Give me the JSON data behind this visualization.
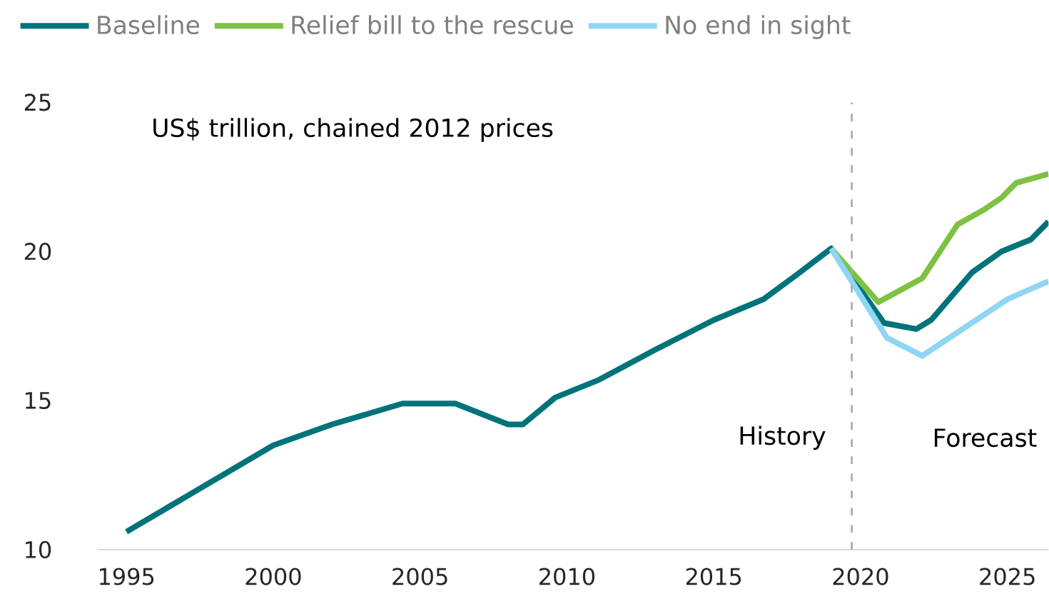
{
  "chart_data": {
    "type": "line",
    "series": [
      {
        "name": "Baseline",
        "color": "#00737a",
        "x": [
          1995,
          2000,
          2002,
          2004.4,
          2006.2,
          2008,
          2008.5,
          2009.6,
          2011.1,
          2013,
          2015,
          2016.7,
          2017.8,
          2019,
          2020.8,
          2021.9,
          2022.4,
          2023.8,
          2024.8,
          2025.8,
          2026.4
        ],
        "values": [
          10.6,
          13.5,
          14.2,
          14.9,
          14.9,
          14.2,
          14.2,
          15.1,
          15.7,
          16.7,
          17.7,
          18.4,
          19.2,
          20.1,
          17.6,
          17.4,
          17.7,
          19.3,
          20.0,
          20.4,
          21.0
        ]
      },
      {
        "name": "Relief bill to the rescue",
        "color": "#7dc242",
        "x": [
          2019,
          2020.6,
          2022.1,
          2022.5,
          2023.3,
          2024.2,
          2024.8,
          2025.3,
          2026.4
        ],
        "values": [
          20.1,
          18.3,
          19.1,
          19.7,
          20.9,
          21.4,
          21.8,
          22.3,
          22.6
        ]
      },
      {
        "name": "No end in sight",
        "color": "#8fd6f5",
        "x": [
          2019,
          2020.9,
          2022.1,
          2025,
          2026.4
        ],
        "values": [
          20.1,
          17.1,
          16.5,
          18.4,
          19.0
        ]
      }
    ],
    "xlim": [
      1994,
      2026.4
    ],
    "ylim": [
      10,
      25
    ],
    "xticks": [
      1995,
      2000,
      2005,
      2010,
      2015,
      2020,
      2025
    ],
    "yticks": [
      10,
      15,
      20,
      25
    ],
    "ref_lines": [
      {
        "axis": "x",
        "value": 2019.7,
        "color": "#aaaaaa",
        "line_style": "dashed"
      }
    ],
    "annotations": [
      "US$ trillion, chained 2012 prices",
      "History",
      "Forecast"
    ],
    "legend": "top",
    "grid": false,
    "marker": "none",
    "line_style": "solid"
  }
}
